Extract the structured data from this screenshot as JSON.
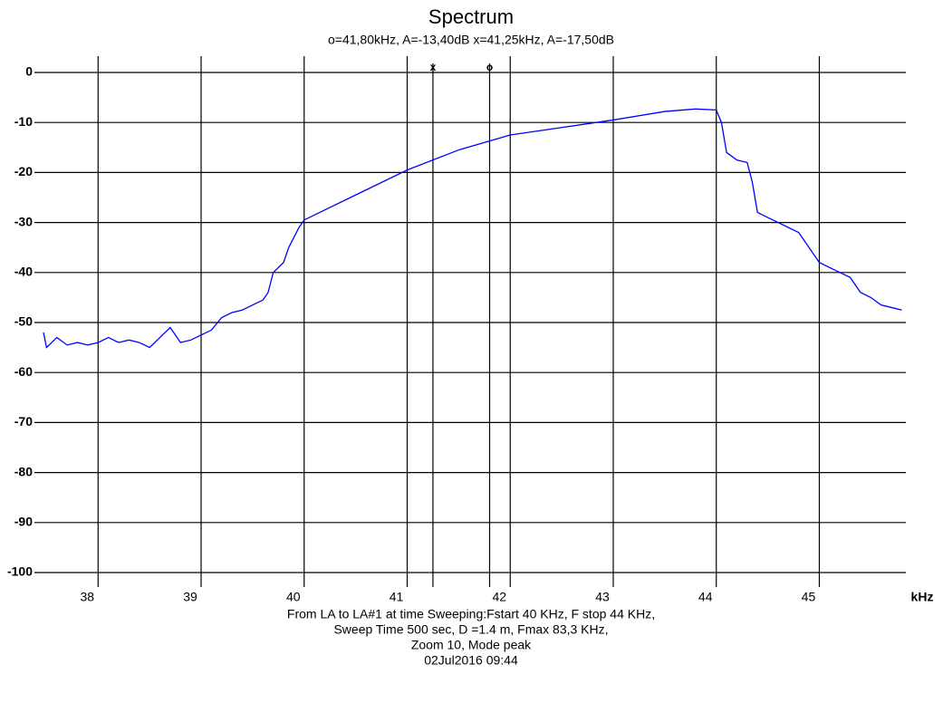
{
  "chart_data": {
    "type": "line",
    "title": "Spectrum",
    "subtitle": "o=41,80kHz, A=-13,40dB  x=41,25kHz, A=-17,50dB",
    "x_label": "kHz",
    "footer": [
      "From  LA   to LA#1 at time Sweeping:Fstart 40 KHz, F stop 44 KHz,",
      "Sweep Time 500 sec, D =1.4 m, Fmax 83,3 KHz,",
      "Zoom 10, Mode peak",
      "02Jul2016  09:44"
    ],
    "x": [
      37.47,
      37.5,
      37.6,
      37.7,
      37.8,
      37.9,
      38.0,
      38.1,
      38.2,
      38.3,
      38.4,
      38.5,
      38.6,
      38.7,
      38.8,
      38.9,
      39.0,
      39.1,
      39.2,
      39.3,
      39.4,
      39.5,
      39.6,
      39.65,
      39.7,
      39.8,
      39.85,
      39.9,
      39.95,
      40.0,
      40.5,
      41.0,
      41.5,
      42.0,
      42.5,
      43.0,
      43.5,
      43.8,
      44.0,
      44.05,
      44.1,
      44.2,
      44.3,
      44.35,
      44.4,
      44.5,
      44.6,
      44.7,
      44.8,
      44.9,
      45.0,
      45.1,
      45.2,
      45.3,
      45.4,
      45.5,
      45.6,
      45.7,
      45.8
    ],
    "series": [
      {
        "name": "Spectrum",
        "color": "#0000ff",
        "values": [
          -52,
          -55,
          -53,
          -54.5,
          -54,
          -54.5,
          -54,
          -53,
          -54,
          -53.5,
          -54,
          -55,
          -53,
          -51,
          -54,
          -53.5,
          -52.5,
          -51.5,
          -49,
          -48,
          -47.5,
          -46.5,
          -45.5,
          -44,
          -40,
          -38,
          -35,
          -33,
          -31,
          -29.5,
          -24.5,
          -19.5,
          -15.5,
          -12.5,
          -11,
          -9.5,
          -7.8,
          -7.3,
          -7.5,
          -10,
          -16,
          -17.5,
          -18,
          -22,
          -28,
          -29,
          -30,
          -31,
          -32,
          -35,
          -38,
          -39,
          -40,
          -41,
          -44,
          -45,
          -46.5,
          -47,
          -47.5
        ]
      }
    ],
    "markers": [
      {
        "label": "x",
        "x": 41.25
      },
      {
        "label": "o",
        "x": 41.8
      }
    ],
    "xlim": [
      37.47,
      45.84
    ],
    "xticks": [
      38,
      39,
      40,
      41,
      42,
      43,
      44,
      45
    ],
    "ylim": [
      -100,
      0
    ],
    "yticks": [
      0,
      -10,
      -20,
      -30,
      -40,
      -50,
      -60,
      -70,
      -80,
      -90,
      -100
    ],
    "grid": true
  }
}
